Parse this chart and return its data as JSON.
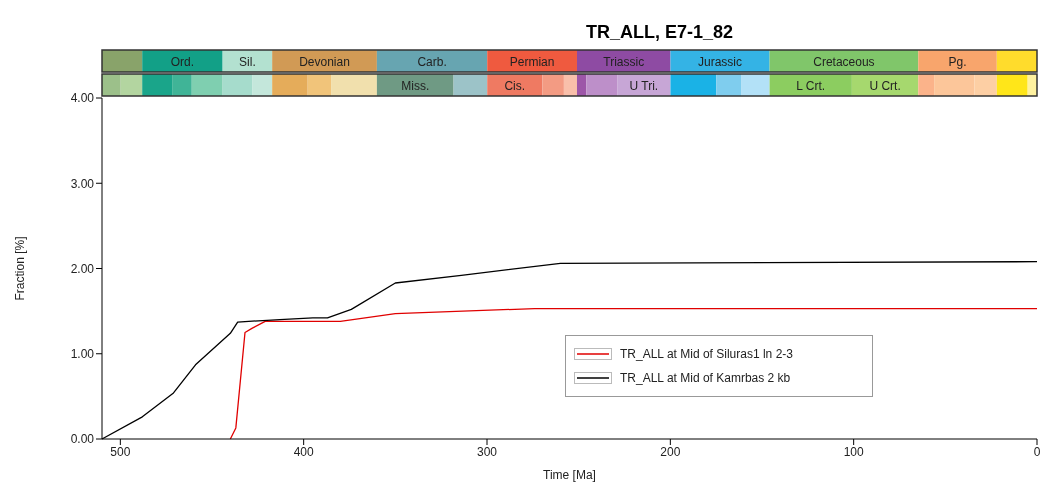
{
  "chart_data": {
    "type": "line",
    "title": "TR_ALL, E7-1_82",
    "xlabel": "Time [Ma]",
    "ylabel": "Fraction [%]",
    "xlim": [
      510,
      0
    ],
    "xticks": [
      500,
      400,
      300,
      200,
      100,
      0
    ],
    "ylim": [
      0,
      4
    ],
    "yticks": [
      {
        "value": 0,
        "label": "0.00"
      },
      {
        "value": 1,
        "label": "1.00"
      },
      {
        "value": 2,
        "label": "2.00"
      },
      {
        "value": 3,
        "label": "3.00"
      },
      {
        "value": 4,
        "label": "4.00"
      }
    ],
    "grid": false,
    "legend": "bottom right",
    "marker": "none",
    "line_style": "solid",
    "annotations": [
      "Ord.",
      "Sil.",
      "Devonian",
      "Carb.",
      "Permian",
      "Triassic",
      "Jurassic",
      "Cretaceous",
      "Pg.",
      "Miss.",
      "Cis.",
      "U Tri.",
      "L Crt.",
      "U Crt."
    ],
    "series": [
      {
        "name": "TR_ALL at Mid of Siluras1 ln 2-3",
        "color": "#e00000",
        "x": [
          440,
          437,
          432,
          428,
          421,
          380,
          350,
          274,
          0
        ],
        "values": [
          0,
          0.13,
          1.25,
          1.3,
          1.38,
          1.38,
          1.47,
          1.53,
          1.53
        ]
      },
      {
        "name": "TR_ALL at Mid of Kamrbas 2 kb",
        "color": "#000000",
        "x": [
          510,
          488,
          471,
          459,
          440,
          436,
          430,
          413,
          395,
          387,
          374,
          350,
          314,
          260,
          0
        ],
        "values": [
          0,
          0.26,
          0.54,
          0.87,
          1.24,
          1.37,
          1.38,
          1.4,
          1.42,
          1.42,
          1.52,
          1.83,
          1.92,
          2.06,
          2.08
        ]
      }
    ]
  }
}
